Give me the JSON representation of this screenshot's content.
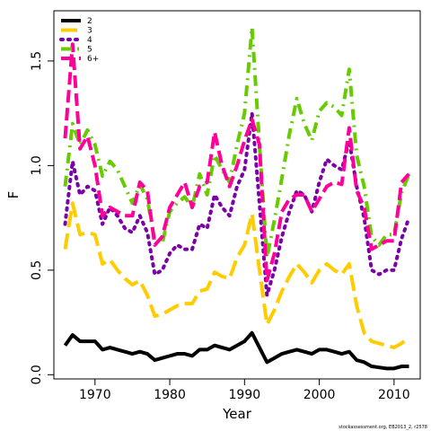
{
  "credit": "stockassessment.org, EB2013_2, r2578",
  "chart_data": {
    "type": "line",
    "xlabel": "Year",
    "ylabel": "F",
    "xlim": [
      1964.5,
      2013.5
    ],
    "ylim": [
      -0.02,
      1.74
    ],
    "xticks": [
      1970,
      1980,
      1990,
      2000,
      2010
    ],
    "yticks": [
      0.0,
      0.5,
      1.0,
      1.5
    ],
    "ytick_labels": [
      "0.0",
      "0.5",
      "1.0",
      "1.5"
    ],
    "legend_position": "top-left",
    "x": [
      1966,
      1967,
      1968,
      1969,
      1970,
      1971,
      1972,
      1973,
      1974,
      1975,
      1976,
      1977,
      1978,
      1979,
      1980,
      1981,
      1982,
      1983,
      1984,
      1985,
      1986,
      1987,
      1988,
      1989,
      1990,
      1991,
      1992,
      1993,
      1994,
      1995,
      1996,
      1997,
      1998,
      1999,
      2000,
      2001,
      2002,
      2003,
      2004,
      2005,
      2006,
      2007,
      2008,
      2009,
      2010,
      2011,
      2012
    ],
    "series": [
      {
        "name": "2",
        "color": "#000000",
        "dash": "solid",
        "values": [
          0.14,
          0.19,
          0.16,
          0.16,
          0.16,
          0.12,
          0.13,
          0.12,
          0.11,
          0.1,
          0.11,
          0.1,
          0.07,
          0.08,
          0.09,
          0.1,
          0.1,
          0.09,
          0.12,
          0.12,
          0.14,
          0.13,
          0.12,
          0.14,
          0.16,
          0.2,
          0.13,
          0.06,
          0.08,
          0.1,
          0.11,
          0.12,
          0.11,
          0.1,
          0.12,
          0.12,
          0.11,
          0.1,
          0.11,
          0.07,
          0.06,
          0.04,
          0.035,
          0.03,
          0.03,
          0.04,
          0.04
        ]
      },
      {
        "name": "3",
        "color": "#ffcc00",
        "dash": "long-dash",
        "values": [
          0.6,
          0.82,
          0.67,
          0.68,
          0.67,
          0.53,
          0.55,
          0.5,
          0.46,
          0.43,
          0.45,
          0.38,
          0.28,
          0.29,
          0.31,
          0.33,
          0.34,
          0.34,
          0.4,
          0.41,
          0.49,
          0.47,
          0.46,
          0.56,
          0.62,
          0.77,
          0.5,
          0.24,
          0.31,
          0.4,
          0.47,
          0.53,
          0.49,
          0.44,
          0.5,
          0.53,
          0.5,
          0.48,
          0.53,
          0.33,
          0.2,
          0.16,
          0.15,
          0.14,
          0.13,
          0.15,
          0.18
        ]
      },
      {
        "name": "4",
        "color": "#7b00a8",
        "dash": "dotted",
        "values": [
          0.72,
          1.02,
          0.86,
          0.9,
          0.88,
          0.72,
          0.8,
          0.76,
          0.7,
          0.68,
          0.76,
          0.68,
          0.48,
          0.5,
          0.58,
          0.62,
          0.6,
          0.6,
          0.72,
          0.7,
          0.86,
          0.8,
          0.76,
          0.9,
          0.98,
          1.25,
          0.82,
          0.38,
          0.5,
          0.66,
          0.78,
          0.88,
          0.86,
          0.78,
          0.92,
          1.03,
          1.0,
          0.98,
          1.12,
          0.9,
          0.75,
          0.5,
          0.48,
          0.5,
          0.5,
          0.65,
          0.75
        ]
      },
      {
        "name": "5",
        "color": "#66cc00",
        "dash": "dash-dot",
        "values": [
          0.9,
          1.2,
          1.1,
          1.17,
          1.1,
          0.95,
          1.02,
          0.98,
          0.9,
          0.82,
          0.91,
          0.84,
          0.64,
          0.63,
          0.78,
          0.82,
          0.85,
          0.8,
          0.96,
          0.86,
          1.05,
          0.98,
          0.92,
          1.1,
          1.25,
          1.66,
          1.1,
          0.56,
          0.74,
          0.94,
          1.15,
          1.32,
          1.2,
          1.12,
          1.26,
          1.3,
          1.28,
          1.24,
          1.46,
          1.05,
          0.9,
          0.66,
          0.62,
          0.67,
          0.67,
          0.87,
          0.96
        ]
      },
      {
        "name": "6+",
        "color": "#ff0099",
        "dash": "dashed",
        "values": [
          1.13,
          1.58,
          1.08,
          1.14,
          1.0,
          0.76,
          0.8,
          0.78,
          0.76,
          0.76,
          0.92,
          0.88,
          0.62,
          0.66,
          0.8,
          0.86,
          0.92,
          0.8,
          0.9,
          0.92,
          1.16,
          1.0,
          0.9,
          1.0,
          1.12,
          1.22,
          1.1,
          0.45,
          0.58,
          0.78,
          0.84,
          0.86,
          0.86,
          0.78,
          0.84,
          0.9,
          0.92,
          0.91,
          1.18,
          0.88,
          0.8,
          0.6,
          0.62,
          0.64,
          0.64,
          0.92,
          0.96
        ]
      }
    ]
  }
}
